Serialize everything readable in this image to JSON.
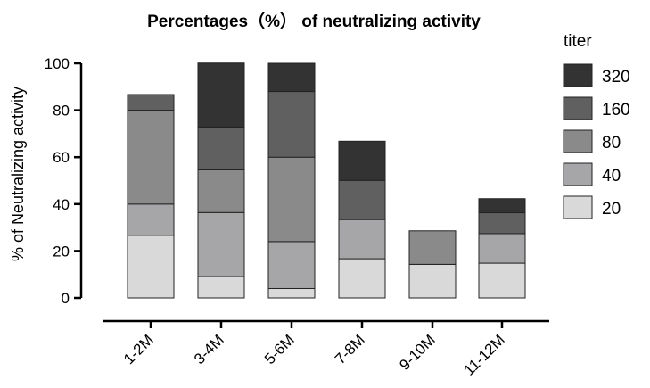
{
  "chart_data": {
    "type": "bar",
    "stacked": true,
    "title": "Percentages（%） of neutralizing activity",
    "xlabel": "",
    "ylabel": "% of Neutralizing activity",
    "ylim": [
      0,
      100
    ],
    "yticks": [
      "0",
      "20",
      "40",
      "60",
      "80",
      "100"
    ],
    "categories": [
      "1-2M",
      "3-4M",
      "5-6M",
      "7-8M",
      "9-10M",
      "11-12M"
    ],
    "legend_title": "titer",
    "legend_position": "right",
    "grid": false,
    "series": [
      {
        "name": "20",
        "color": "#d9d9d9",
        "values": [
          26.7,
          9.1,
          4.0,
          16.7,
          14.3,
          14.8
        ]
      },
      {
        "name": "40",
        "color": "#a6a6a8",
        "values": [
          13.3,
          27.3,
          20.0,
          16.7,
          0,
          12.6
        ]
      },
      {
        "name": "80",
        "color": "#8a8a8a",
        "values": [
          40.0,
          18.2,
          36.0,
          0,
          14.3,
          0
        ]
      },
      {
        "name": "160",
        "color": "#606060",
        "values": [
          6.7,
          18.2,
          28.0,
          16.7,
          0,
          8.9
        ]
      },
      {
        "name": "320",
        "color": "#333333",
        "values": [
          0,
          27.3,
          12.0,
          16.7,
          0,
          6.0
        ]
      }
    ]
  }
}
